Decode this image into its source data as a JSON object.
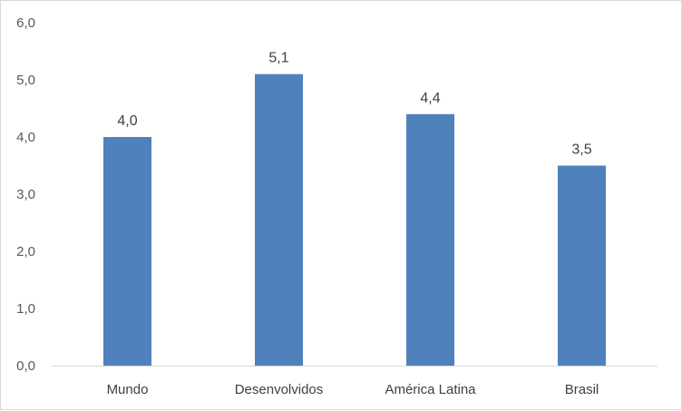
{
  "chart_data": {
    "type": "bar",
    "categories": [
      "Mundo",
      "Desenvolvidos",
      "América Latina",
      "Brasil"
    ],
    "values": [
      4.0,
      5.1,
      4.4,
      3.5
    ],
    "data_labels": [
      "4,0",
      "5,1",
      "4,4",
      "3,5"
    ],
    "y_ticks": [
      "0,0",
      "1,0",
      "2,0",
      "3,0",
      "4,0",
      "5,0",
      "6,0"
    ],
    "ylim": [
      0,
      6
    ],
    "title": "",
    "xlabel": "",
    "ylabel": "",
    "grid": false,
    "legend": "none",
    "bar_color": "#4f81bd"
  }
}
